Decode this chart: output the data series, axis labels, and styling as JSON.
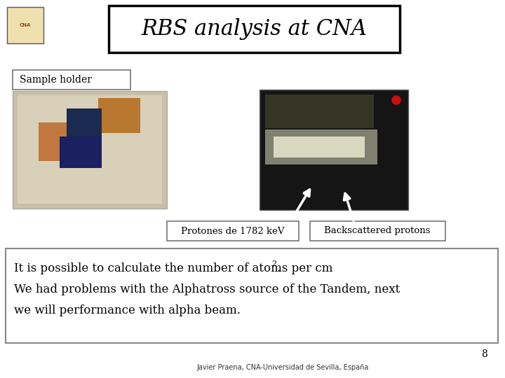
{
  "title": "RBS analysis at CNA",
  "title_fontsize": 22,
  "title_font": "serif",
  "sample_holder_label": "Sample holder",
  "protones_label": "Protones de 1782 keV",
  "backscattered_label": "Backscattered protons",
  "text_line1": "It is possible to calculate the number of atoms per cm",
  "text_line2": "We had problems with the Alphatross source of the Tandem, next",
  "text_line3": "we will performance with alpha beam.",
  "footer": "Javier Praena, CNA-Universidad de Sevilla, España",
  "page_number": "8",
  "bg_color": "#ffffff",
  "text_color": "#000000"
}
